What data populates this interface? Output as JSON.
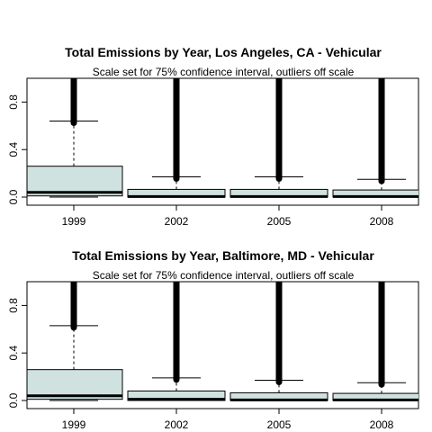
{
  "chart_data": [
    {
      "type": "boxplot",
      "title": "Total Emissions by Year, Los Angeles, CA - Vehicular",
      "subtitle": "Scale set for 75% confidence interval, outliers off scale",
      "xlabel": "",
      "ylabel": "",
      "ylim": [
        0,
        1.0
      ],
      "yticks": [
        0.0,
        0.4,
        0.8
      ],
      "ytick_labels": [
        "0.0",
        "0.4",
        "0.8"
      ],
      "categories": [
        "1999",
        "2002",
        "2005",
        "2008"
      ],
      "box_fill": "#cfe2e0",
      "boxes": [
        {
          "category": "1999",
          "lower_whisker": 0.0,
          "q1": 0.01,
          "median": 0.04,
          "q3": 0.26,
          "upper_whisker": 0.64
        },
        {
          "category": "2002",
          "lower_whisker": 0.0,
          "q1": 0.0,
          "median": 0.005,
          "q3": 0.065,
          "upper_whisker": 0.17
        },
        {
          "category": "2005",
          "lower_whisker": 0.0,
          "q1": 0.0,
          "median": 0.005,
          "q3": 0.065,
          "upper_whisker": 0.17
        },
        {
          "category": "2008",
          "lower_whisker": 0.0,
          "q1": 0.0,
          "median": 0.005,
          "q3": 0.06,
          "upper_whisker": 0.15
        }
      ]
    },
    {
      "type": "boxplot",
      "title": "Total Emissions by Year, Baltimore, MD - Vehicular",
      "subtitle": "Scale set for 75% confidence interval, outliers off scale",
      "xlabel": "",
      "ylabel": "",
      "ylim": [
        0,
        1.0
      ],
      "yticks": [
        0.0,
        0.4,
        0.8
      ],
      "ytick_labels": [
        "0.0",
        "0.4",
        "0.8"
      ],
      "categories": [
        "1999",
        "2002",
        "2005",
        "2008"
      ],
      "box_fill": "#cfe2e0",
      "boxes": [
        {
          "category": "1999",
          "lower_whisker": 0.0,
          "q1": 0.01,
          "median": 0.04,
          "q3": 0.26,
          "upper_whisker": 0.63
        },
        {
          "category": "2002",
          "lower_whisker": 0.0,
          "q1": 0.0,
          "median": 0.01,
          "q3": 0.08,
          "upper_whisker": 0.19
        },
        {
          "category": "2005",
          "lower_whisker": 0.0,
          "q1": 0.0,
          "median": 0.005,
          "q3": 0.065,
          "upper_whisker": 0.17
        },
        {
          "category": "2008",
          "lower_whisker": 0.0,
          "q1": 0.0,
          "median": 0.005,
          "q3": 0.06,
          "upper_whisker": 0.15
        }
      ]
    }
  ]
}
